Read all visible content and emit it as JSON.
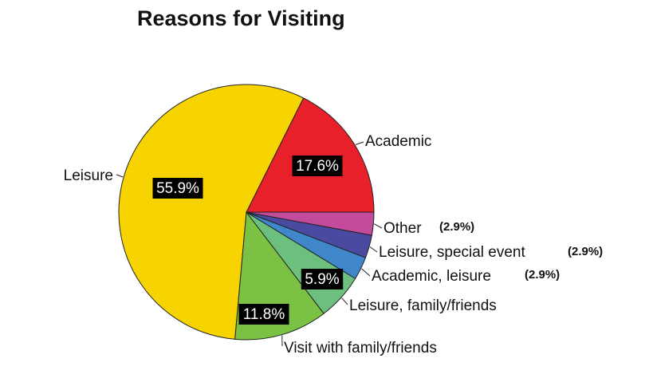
{
  "chart_data": {
    "type": "pie",
    "title": "Reasons for Visiting",
    "slices": [
      {
        "label": "Academic",
        "value": 17.6,
        "pct_text": "17.6%",
        "color": "#E8202A"
      },
      {
        "label": "Leisure",
        "value": 55.9,
        "pct_text": "55.9%",
        "color": "#F7D300"
      },
      {
        "label": "Visit with family/friends",
        "value": 11.8,
        "pct_text": "11.8%",
        "color": "#7BC143"
      },
      {
        "label": "Leisure, family/friends",
        "value": 5.9,
        "pct_text": "5.9%",
        "color": "#6DBF7E"
      },
      {
        "label": "Academic, leisure",
        "value": 2.9,
        "pct_text": "(2.9%)",
        "color": "#3F86CB"
      },
      {
        "label": "Leisure, special event",
        "value": 2.9,
        "pct_text": "(2.9%)",
        "color": "#4A4AA0"
      },
      {
        "label": "Other",
        "value": 2.9,
        "pct_text": "(2.9%)",
        "color": "#C24B9B"
      }
    ]
  }
}
